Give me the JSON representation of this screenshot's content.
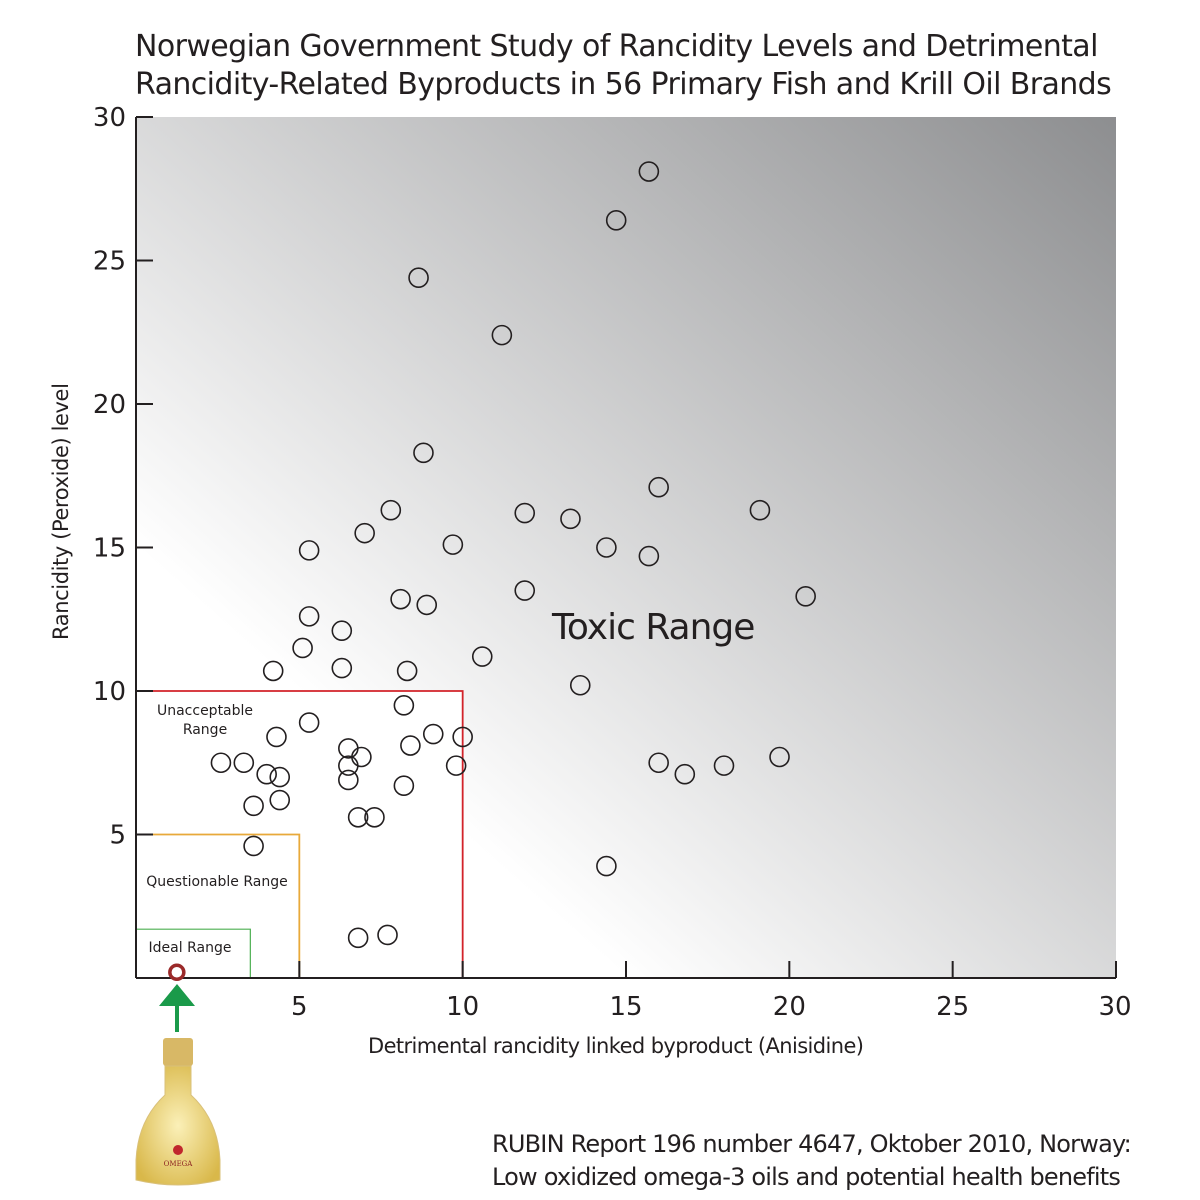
{
  "chart_data": {
    "type": "scatter",
    "title": [
      "Norwegian Government Study of Rancidity Levels and Detrimental",
      "Rancidity-Related Byproducts in 56 Primary Fish and Krill Oil Brands"
    ],
    "xlabel": "Detrimental rancidity linked byproduct (Anisidine)",
    "ylabel": "Rancidity (Peroxide) level",
    "xlim": [
      0,
      30
    ],
    "ylim": [
      0,
      30
    ],
    "xticks": [
      5,
      10,
      15,
      20,
      25,
      30
    ],
    "yticks": [
      5,
      10,
      15,
      20,
      25,
      30
    ],
    "grid": false,
    "background": "gradient white (lower-left) to gray (upper-right)",
    "points": [
      [
        15.7,
        28.1
      ],
      [
        14.7,
        26.4
      ],
      [
        8.65,
        24.4
      ],
      [
        11.2,
        22.4
      ],
      [
        8.8,
        18.3
      ],
      [
        16.0,
        17.1
      ],
      [
        19.1,
        16.3
      ],
      [
        7.8,
        16.3
      ],
      [
        11.9,
        16.2
      ],
      [
        13.3,
        16.0
      ],
      [
        7.0,
        15.5
      ],
      [
        5.3,
        14.9
      ],
      [
        9.7,
        15.1
      ],
      [
        14.4,
        15.0
      ],
      [
        15.7,
        14.7
      ],
      [
        11.9,
        13.5
      ],
      [
        20.5,
        13.3
      ],
      [
        8.1,
        13.2
      ],
      [
        8.9,
        13.0
      ],
      [
        5.3,
        12.6
      ],
      [
        6.3,
        12.1
      ],
      [
        5.1,
        11.5
      ],
      [
        10.6,
        11.2
      ],
      [
        6.3,
        10.8
      ],
      [
        4.2,
        10.7
      ],
      [
        8.3,
        10.7
      ],
      [
        13.6,
        10.2
      ],
      [
        8.2,
        9.5
      ],
      [
        5.3,
        8.9
      ],
      [
        9.1,
        8.5
      ],
      [
        10.0,
        8.4
      ],
      [
        4.3,
        8.4
      ],
      [
        8.4,
        8.1
      ],
      [
        6.5,
        8.0
      ],
      [
        6.9,
        7.7
      ],
      [
        6.5,
        7.4
      ],
      [
        2.6,
        7.5
      ],
      [
        3.3,
        7.5
      ],
      [
        9.8,
        7.4
      ],
      [
        16.0,
        7.5
      ],
      [
        16.8,
        7.1
      ],
      [
        18.0,
        7.4
      ],
      [
        19.7,
        7.7
      ],
      [
        4.0,
        7.1
      ],
      [
        4.4,
        7.0
      ],
      [
        6.5,
        6.9
      ],
      [
        8.2,
        6.7
      ],
      [
        4.4,
        6.2
      ],
      [
        3.6,
        6.0
      ],
      [
        6.8,
        5.6
      ],
      [
        7.3,
        5.6
      ],
      [
        3.6,
        4.6
      ],
      [
        14.4,
        3.9
      ],
      [
        6.8,
        1.4
      ],
      [
        7.7,
        1.5
      ]
    ],
    "highlight_point": {
      "x": 1.25,
      "y": 0.2,
      "color": "#9b2a2a"
    },
    "regions": [
      {
        "label": "Unacceptable Range",
        "x_max": 10,
        "y_max": 10,
        "color": "#d2232a"
      },
      {
        "label": "Questionable Range",
        "x_max": 5,
        "y_max": 5,
        "color": "#e8a93a"
      },
      {
        "label": "Ideal Range",
        "x_max": 3.5,
        "y_max": 1.7,
        "color": "#4caf50"
      }
    ],
    "annotation": "Toxic Range",
    "arrow_color": "#1a9a4a"
  },
  "source": {
    "line1": "RUBIN Report 196 number 4647, Oktober 2010, Norway:",
    "line2": "Low oxidized omega-3 oils and potential health benefits"
  },
  "bottle_label": "OMEGA"
}
